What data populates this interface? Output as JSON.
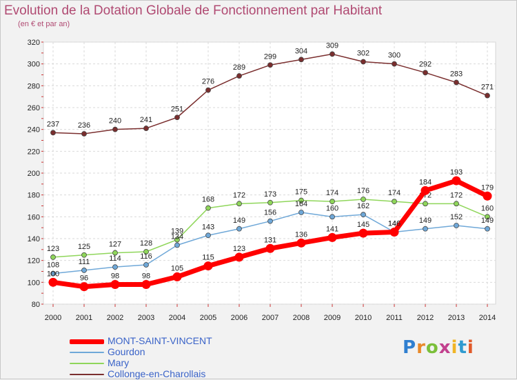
{
  "title": "Evolution de la Dotation Globale de Fonctionnement par Habitant",
  "subtitle": "(en € et par an)",
  "logo": {
    "text": "Proxiti",
    "letter_colors": [
      "#2f7fd0",
      "#e8892a",
      "#7bbf3a",
      "#c2418e",
      "#f0b526",
      "#2f9bd0",
      "#e05a2a"
    ]
  },
  "chart_data": {
    "type": "line",
    "x": [
      2000,
      2001,
      2002,
      2003,
      2004,
      2005,
      2006,
      2007,
      2008,
      2009,
      2010,
      2011,
      2012,
      2013,
      2014
    ],
    "ylim": [
      80,
      320
    ],
    "yticks": [
      80,
      100,
      120,
      140,
      160,
      180,
      200,
      220,
      240,
      260,
      280,
      300,
      320
    ],
    "grid": true,
    "legend_position": "bottom-left",
    "series": [
      {
        "name": "Collonge-en-Charollais",
        "color": "#7a2e2e",
        "values": [
          237,
          236,
          240,
          241,
          251,
          276,
          289,
          299,
          304,
          309,
          302,
          300,
          292,
          283,
          271
        ]
      },
      {
        "name": "Mary",
        "color": "#8fd65a",
        "values": [
          123,
          125,
          127,
          128,
          139,
          168,
          172,
          173,
          175,
          174,
          176,
          174,
          172,
          172,
          160
        ]
      },
      {
        "name": "Gourdon",
        "color": "#6fa8d8",
        "values": [
          108,
          111,
          114,
          116,
          134,
          143,
          149,
          156,
          164,
          160,
          162,
          146,
          149,
          152,
          149
        ]
      },
      {
        "name": "MONT-SAINT-VINCENT",
        "color": "#ff0000",
        "values": [
          100,
          96,
          98,
          98,
          105,
          115,
          123,
          131,
          136,
          141,
          145,
          146,
          184,
          193,
          179
        ]
      }
    ],
    "legend_order": [
      "MONT-SAINT-VINCENT",
      "Gourdon",
      "Mary",
      "Collonge-en-Charollais"
    ]
  }
}
